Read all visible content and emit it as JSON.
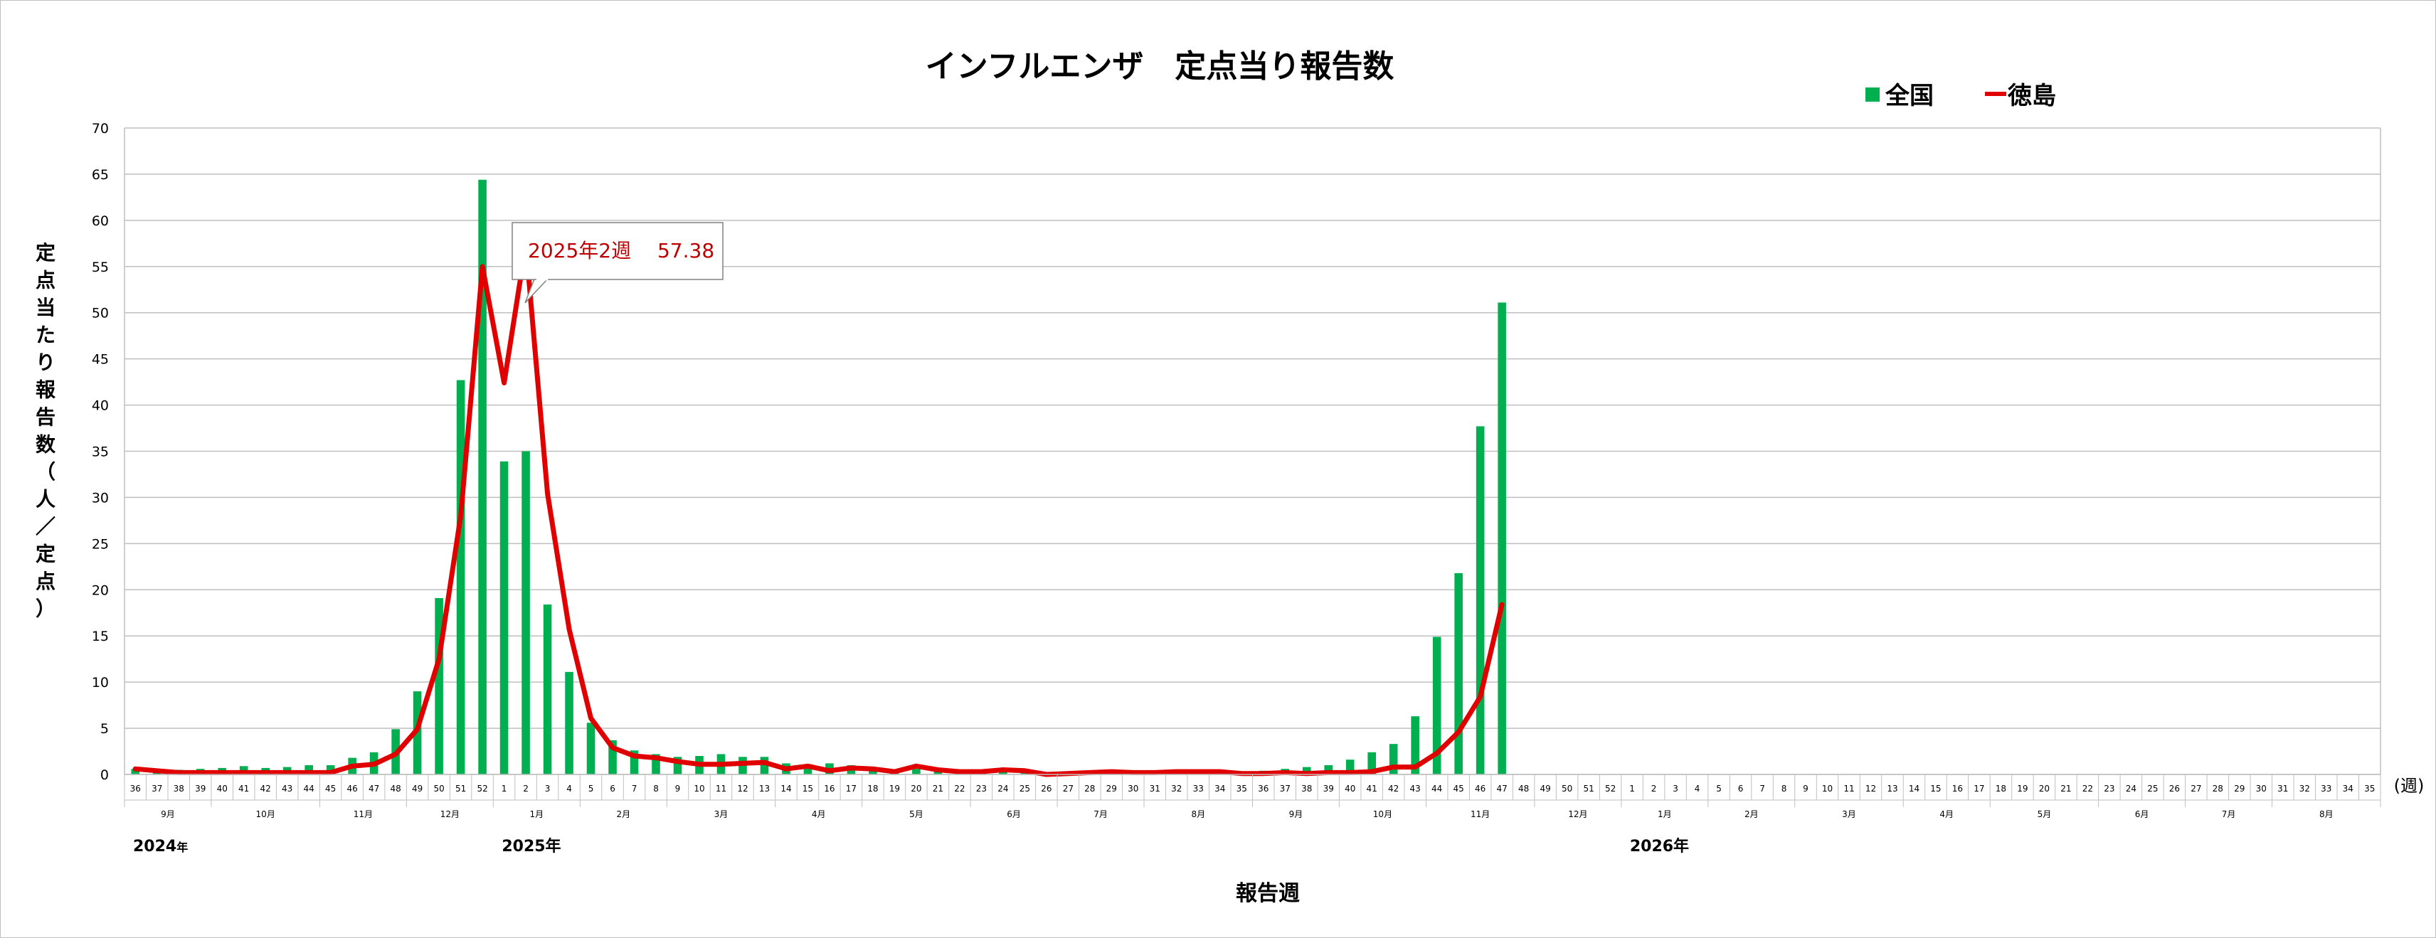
{
  "chart_data": {
    "type": "bar+line",
    "title": "インフルエンザ　定点当り報告数",
    "ylabel": "定点当たり報告数（人／定点）",
    "xlabel": "報告週",
    "x_unit": "(週)",
    "ylim": [
      0,
      70
    ],
    "yticks": [
      0,
      5,
      10,
      15,
      20,
      25,
      30,
      35,
      40,
      45,
      50,
      55,
      60,
      65,
      70
    ],
    "grid": true,
    "legend_position": "top-right",
    "colors": {
      "bar": "#00b050",
      "line": "#e00000"
    },
    "weeks": [
      36,
      37,
      38,
      39,
      40,
      41,
      42,
      43,
      44,
      45,
      46,
      47,
      48,
      49,
      50,
      51,
      52,
      1,
      2,
      3,
      4,
      5,
      6,
      7,
      8,
      9,
      10,
      11,
      12,
      13,
      14,
      15,
      16,
      17,
      18,
      19,
      20,
      21,
      22,
      23,
      24,
      25,
      26,
      27,
      28,
      29,
      30,
      31,
      32,
      33,
      34,
      35,
      36,
      37,
      38,
      39,
      40,
      41,
      42,
      43,
      44,
      45,
      46,
      47,
      48,
      49,
      50,
      51,
      52,
      1,
      2,
      3,
      4,
      5,
      6,
      7,
      8,
      9,
      10,
      11,
      12,
      13,
      14,
      15,
      16,
      17,
      18,
      19,
      20,
      21,
      22,
      23,
      24,
      25,
      26,
      27,
      28,
      29,
      30,
      31,
      32,
      33,
      34,
      35
    ],
    "months": [
      {
        "label": "9月",
        "start": 0,
        "end": 4
      },
      {
        "label": "10月",
        "start": 4,
        "end": 9
      },
      {
        "label": "11月",
        "start": 9,
        "end": 13
      },
      {
        "label": "12月",
        "start": 13,
        "end": 17
      },
      {
        "label": "1月",
        "start": 17,
        "end": 21
      },
      {
        "label": "2月",
        "start": 21,
        "end": 25
      },
      {
        "label": "3月",
        "start": 25,
        "end": 30
      },
      {
        "label": "4月",
        "start": 30,
        "end": 34
      },
      {
        "label": "5月",
        "start": 34,
        "end": 39
      },
      {
        "label": "6月",
        "start": 39,
        "end": 43
      },
      {
        "label": "7月",
        "start": 43,
        "end": 47
      },
      {
        "label": "8月",
        "start": 47,
        "end": 52
      },
      {
        "label": "9月",
        "start": 52,
        "end": 56
      },
      {
        "label": "10月",
        "start": 56,
        "end": 60
      },
      {
        "label": "11月",
        "start": 60,
        "end": 65
      },
      {
        "label": "12月",
        "start": 65,
        "end": 69
      },
      {
        "label": "1月",
        "start": 69,
        "end": 73
      },
      {
        "label": "2月",
        "start": 73,
        "end": 77
      },
      {
        "label": "3月",
        "start": 77,
        "end": 82
      },
      {
        "label": "4月",
        "start": 82,
        "end": 86
      },
      {
        "label": "5月",
        "start": 86,
        "end": 91
      },
      {
        "label": "6月",
        "start": 91,
        "end": 95
      },
      {
        "label": "7月",
        "start": 95,
        "end": 99
      },
      {
        "label": "8月",
        "start": 99,
        "end": 104
      }
    ],
    "years": [
      {
        "label": "2024",
        "suffix": "年",
        "index": 0
      },
      {
        "label": "2025年",
        "suffix": "",
        "index": 17
      },
      {
        "label": "2026年",
        "suffix": "",
        "index": 69
      }
    ],
    "series": [
      {
        "name": "全国",
        "kind": "bar",
        "values": [
          0.6,
          0.5,
          0.5,
          0.6,
          0.7,
          0.9,
          0.7,
          0.8,
          1.0,
          1.0,
          1.8,
          2.4,
          4.9,
          9.0,
          19.1,
          42.7,
          64.4,
          33.9,
          35.0,
          18.4,
          11.1,
          5.6,
          3.7,
          2.6,
          2.2,
          1.9,
          2.0,
          2.2,
          1.9,
          1.9,
          1.2,
          1.1,
          1.2,
          1.0,
          0.7,
          0.4,
          0.6,
          0.3,
          0.3,
          0.3,
          0.3,
          0.3,
          0.2,
          0.1,
          0.1,
          0.1,
          0.1,
          0.1,
          0.2,
          0.2,
          0.2,
          0.3,
          0.4,
          0.6,
          0.8,
          1.0,
          1.6,
          2.4,
          3.3,
          6.3,
          14.9,
          21.8,
          37.7,
          51.1,
          null,
          null,
          null,
          null,
          null,
          null,
          null,
          null,
          null,
          null,
          null,
          null,
          null,
          null,
          null,
          null,
          null,
          null,
          null,
          null,
          null,
          null,
          null,
          null,
          null,
          null,
          null,
          null,
          null,
          null,
          null,
          null,
          null,
          null,
          null,
          null,
          null,
          null,
          null,
          null
        ]
      },
      {
        "name": "徳島",
        "kind": "line",
        "values": [
          0.6,
          0.4,
          0.2,
          0.2,
          0.2,
          0.2,
          0.2,
          0.2,
          0.2,
          0.2,
          0.9,
          1.1,
          2.2,
          4.9,
          12.5,
          28.0,
          55.0,
          42.4,
          57.38,
          30.4,
          15.7,
          6.1,
          2.9,
          2.0,
          1.8,
          1.4,
          1.1,
          1.1,
          1.2,
          1.3,
          0.6,
          0.9,
          0.4,
          0.7,
          0.6,
          0.3,
          0.9,
          0.5,
          0.3,
          0.3,
          0.5,
          0.4,
          0.0,
          0.1,
          0.2,
          0.3,
          0.2,
          0.2,
          0.3,
          0.3,
          0.3,
          0.1,
          0.1,
          0.2,
          0.1,
          0.2,
          0.2,
          0.3,
          0.8,
          0.8,
          2.3,
          4.6,
          8.4,
          18.4,
          null,
          null,
          null,
          null,
          null,
          null,
          null,
          null,
          null,
          null,
          null,
          null,
          null,
          null,
          null,
          null,
          null,
          null,
          null,
          null,
          null,
          null,
          null,
          null,
          null,
          null,
          null,
          null,
          null,
          null,
          null,
          null,
          null,
          null,
          null,
          null,
          null,
          null,
          null,
          null
        ]
      }
    ],
    "annotations": [
      {
        "text": "2025年2週　 57.38",
        "index": 18,
        "value": 57.38
      }
    ]
  }
}
